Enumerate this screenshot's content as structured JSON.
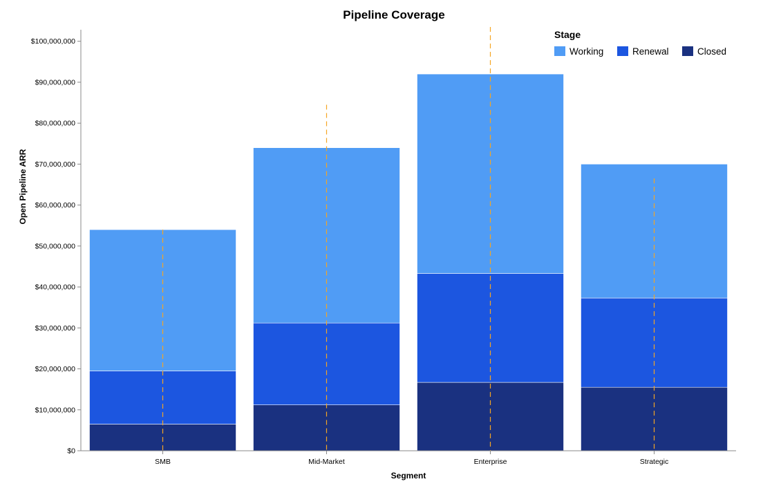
{
  "chart_data": {
    "type": "bar",
    "stacked": true,
    "title": "Pipeline Coverage",
    "xlabel": "Segment",
    "ylabel": "Open Pipeline ARR",
    "categories": [
      "SMB",
      "Mid-Market",
      "Enterprise",
      "Strategic"
    ],
    "series": [
      {
        "name": "Closed",
        "color": "#1a3180",
        "values": [
          6500000,
          11200000,
          16700000,
          15500000
        ]
      },
      {
        "name": "Renewal",
        "color": "#1c56e0",
        "values": [
          13000000,
          20000000,
          26600000,
          21800000
        ]
      },
      {
        "name": "Working",
        "color": "#509cf5",
        "values": [
          34500000,
          42800000,
          48700000,
          32700000
        ]
      }
    ],
    "reference_lines": {
      "color": "#f5a623",
      "style": "dashed",
      "values": [
        54000000,
        84500000,
        103500000,
        66500000
      ]
    },
    "ylim": [
      0,
      104000000
    ],
    "yticks": [
      0,
      10000000,
      20000000,
      30000000,
      40000000,
      50000000,
      60000000,
      70000000,
      80000000,
      90000000,
      100000000
    ],
    "ytick_labels": [
      "$0",
      "$10,000,000",
      "$20,000,000",
      "$30,000,000",
      "$40,000,000",
      "$50,000,000",
      "$60,000,000",
      "$70,000,000",
      "$80,000,000",
      "$90,000,000",
      "$100,000,000"
    ],
    "grid": false,
    "legend": {
      "title": "Stage",
      "placement": "top-right",
      "items": [
        {
          "name": "Working",
          "color": "#509cf5"
        },
        {
          "name": "Renewal",
          "color": "#1c56e0"
        },
        {
          "name": "Closed",
          "color": "#1a3180"
        }
      ]
    }
  }
}
